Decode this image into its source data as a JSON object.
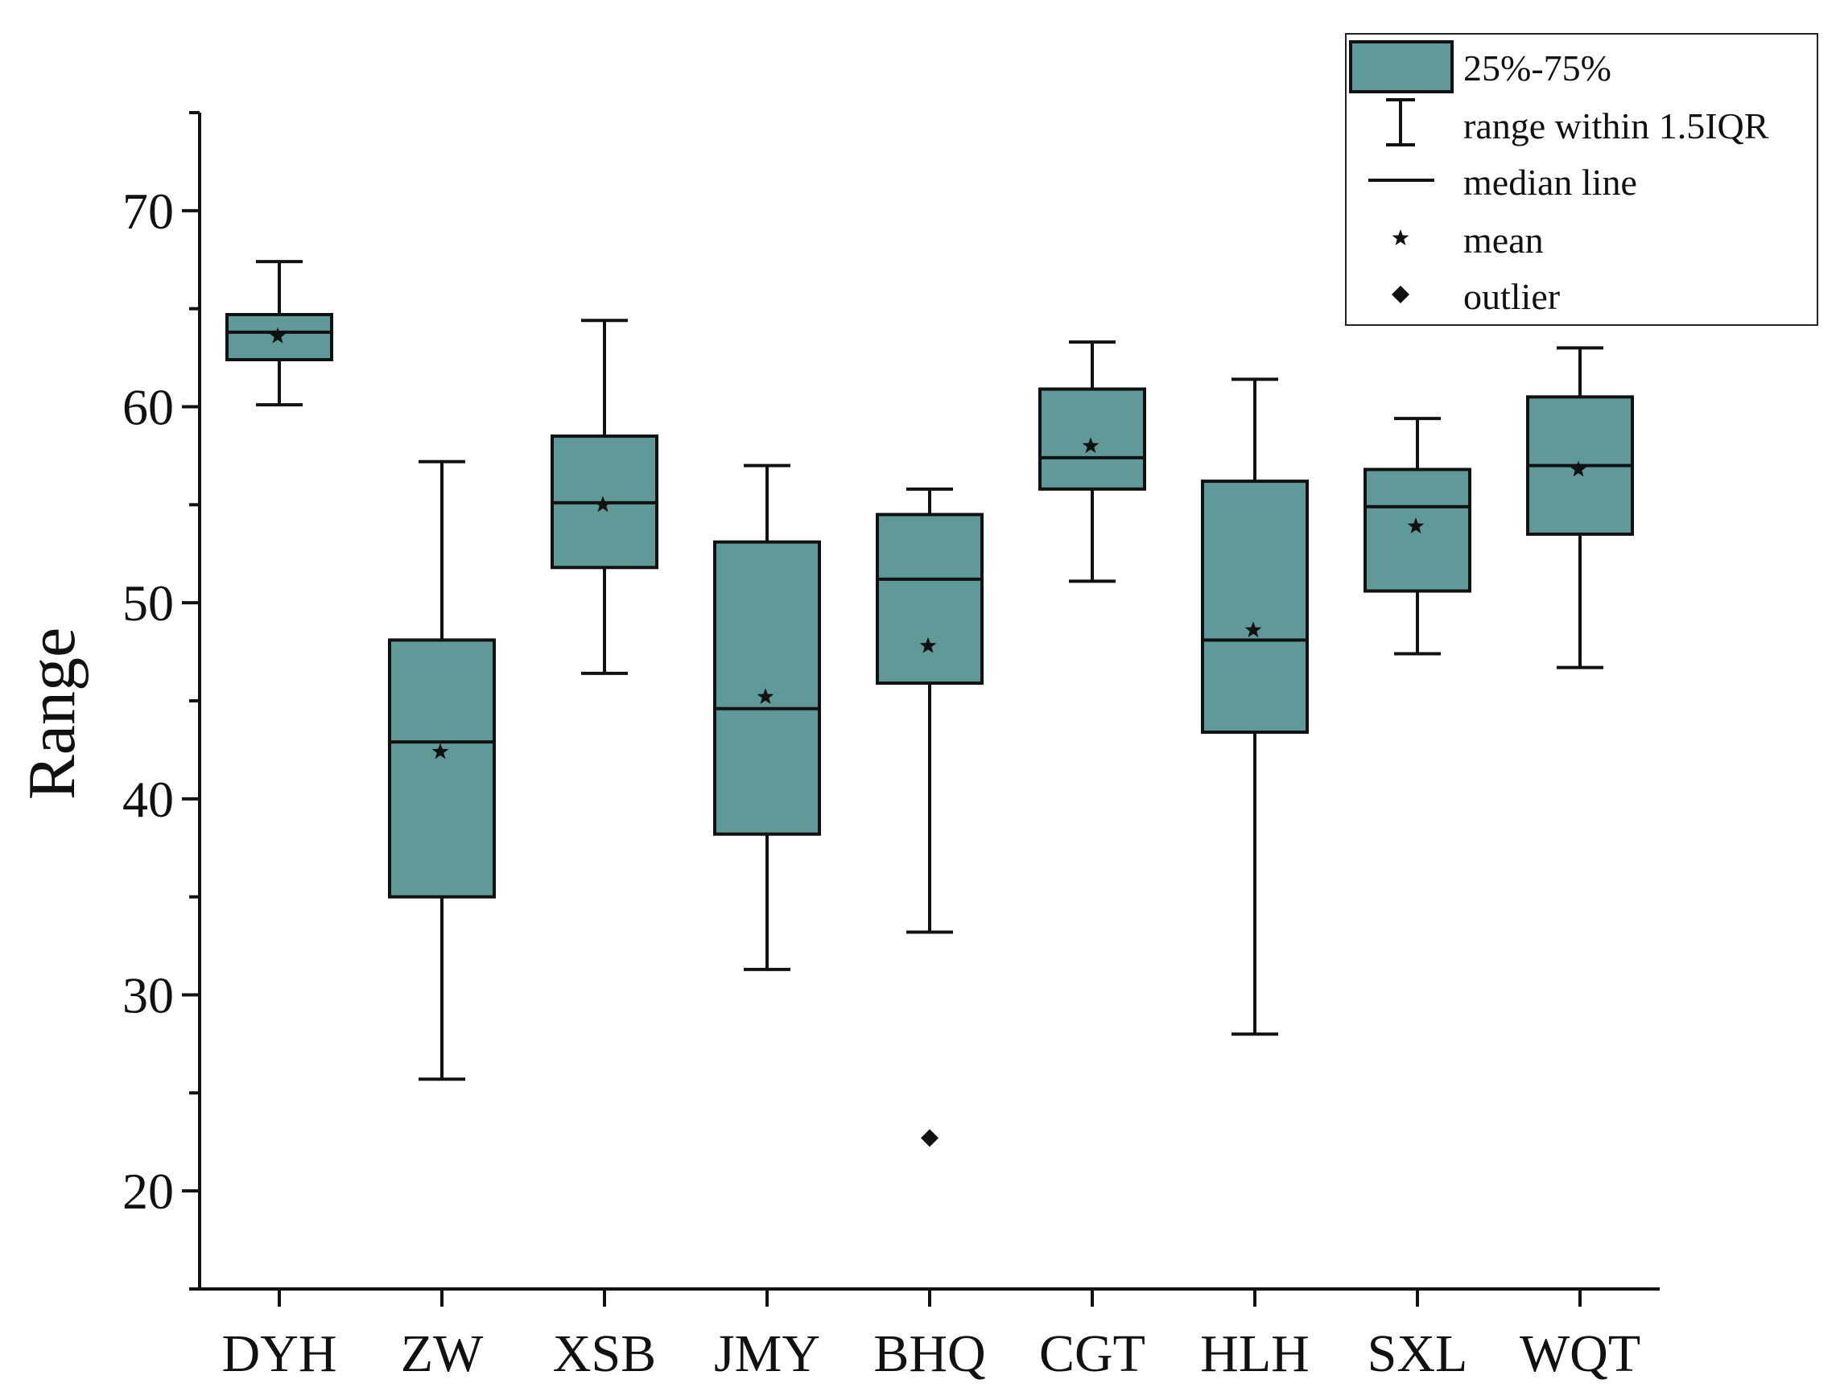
{
  "chart_data": {
    "type": "box",
    "title": "",
    "xlabel": "",
    "ylabel": "Range",
    "ylim": [
      15,
      75
    ],
    "yticks": [
      20,
      30,
      40,
      50,
      60,
      70
    ],
    "minor_tick_step": 5,
    "box_color": "#5f9a98",
    "edge_color": "#111111",
    "categories": [
      "DYH",
      "ZW",
      "XSB",
      "JMY",
      "BHQ",
      "CGT",
      "HLH",
      "SXL",
      "WQT"
    ],
    "boxes": [
      {
        "category": "DYH",
        "whisker_low": 60.1,
        "q1": 62.4,
        "median": 63.8,
        "q3": 64.7,
        "whisker_high": 67.4,
        "mean": 63.6,
        "outliers": []
      },
      {
        "category": "ZW",
        "whisker_low": 25.7,
        "q1": 35.0,
        "median": 42.9,
        "q3": 48.1,
        "whisker_high": 57.2,
        "mean": 42.4,
        "outliers": []
      },
      {
        "category": "XSB",
        "whisker_low": 46.4,
        "q1": 51.8,
        "median": 55.1,
        "q3": 58.5,
        "whisker_high": 64.4,
        "mean": 55.0,
        "outliers": []
      },
      {
        "category": "JMY",
        "whisker_low": 31.3,
        "q1": 38.2,
        "median": 44.6,
        "q3": 53.1,
        "whisker_high": 57.0,
        "mean": 45.2,
        "outliers": []
      },
      {
        "category": "BHQ",
        "whisker_low": 33.2,
        "q1": 45.9,
        "median": 51.2,
        "q3": 54.5,
        "whisker_high": 55.8,
        "mean": 47.8,
        "outliers": [
          22.7
        ]
      },
      {
        "category": "CGT",
        "whisker_low": 51.1,
        "q1": 55.8,
        "median": 57.4,
        "q3": 60.9,
        "whisker_high": 63.3,
        "mean": 58.0,
        "outliers": []
      },
      {
        "category": "HLH",
        "whisker_low": 28.0,
        "q1": 43.4,
        "median": 48.1,
        "q3": 56.2,
        "whisker_high": 61.4,
        "mean": 48.6,
        "outliers": []
      },
      {
        "category": "SXL",
        "whisker_low": 47.4,
        "q1": 50.6,
        "median": 54.9,
        "q3": 56.8,
        "whisker_high": 59.4,
        "mean": 53.9,
        "outliers": []
      },
      {
        "category": "WQT",
        "whisker_low": 46.7,
        "q1": 53.5,
        "median": 57.0,
        "q3": 60.5,
        "whisker_high": 63.0,
        "mean": 56.8,
        "outliers": []
      }
    ],
    "legend": {
      "position": "top-right",
      "items": [
        {
          "key": "box",
          "label": "25%-75%"
        },
        {
          "key": "whisker",
          "label": "range within 1.5IQR"
        },
        {
          "key": "median",
          "label": "median line"
        },
        {
          "key": "mean",
          "label": "mean"
        },
        {
          "key": "outlier",
          "label": "outlier"
        }
      ]
    }
  }
}
